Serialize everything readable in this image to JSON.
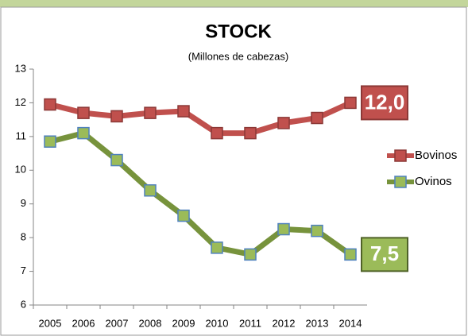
{
  "chart_data": {
    "type": "line",
    "title": "STOCK",
    "subtitle": "(Millones de cabezas)",
    "categories": [
      "2005",
      "2006",
      "2007",
      "2008",
      "2009",
      "2010",
      "2011",
      "2012",
      "2013",
      "2014"
    ],
    "series": [
      {
        "name": "Bovinos",
        "color": "#c0504d",
        "values": [
          11.95,
          11.7,
          11.6,
          11.7,
          11.75,
          11.1,
          11.1,
          11.4,
          11.55,
          12.0
        ],
        "value_labels": [
          null,
          null,
          null,
          null,
          null,
          null,
          null,
          null,
          null,
          "12,0"
        ]
      },
      {
        "name": "Ovinos",
        "color": "#77933c",
        "values": [
          10.85,
          11.1,
          10.3,
          9.4,
          8.65,
          7.7,
          7.5,
          8.25,
          8.2,
          7.5
        ],
        "value_labels": [
          null,
          null,
          null,
          null,
          null,
          null,
          null,
          null,
          null,
          "7,5"
        ]
      }
    ],
    "ylim": [
      6,
      13
    ],
    "yticks": [
      6,
      7,
      8,
      9,
      10,
      11,
      12,
      13
    ],
    "legend": "right"
  }
}
